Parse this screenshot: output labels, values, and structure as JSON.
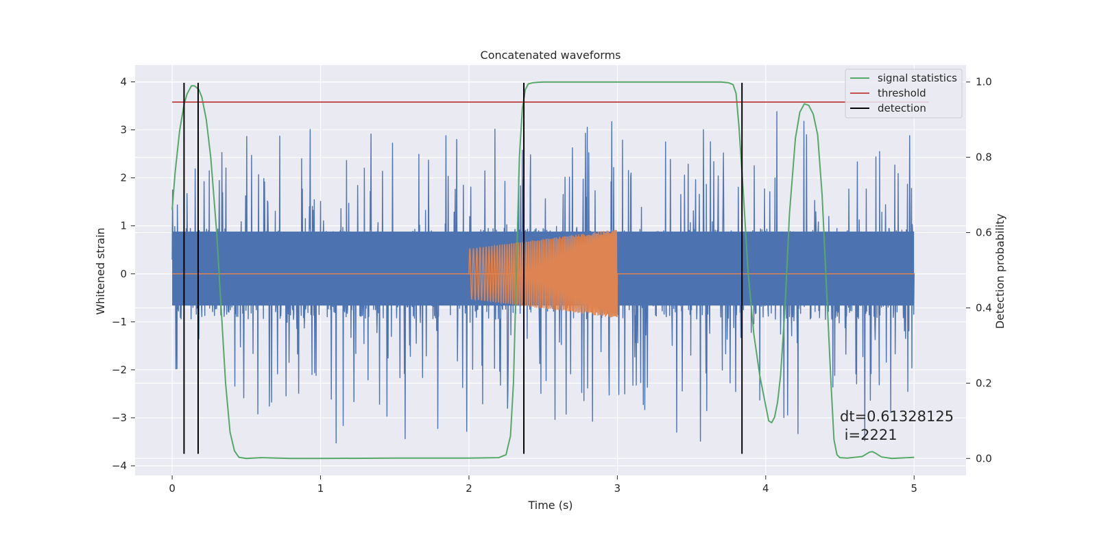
{
  "chart_data": {
    "type": "line",
    "title": "Concatenated waveforms",
    "xlabel": "Time (s)",
    "ylabel_left": "Whitened strain",
    "ylabel_right": "Detection probability",
    "xlim": [
      -0.25,
      5.35
    ],
    "ylim_left": [
      -4.2,
      4.35
    ],
    "ylim_right": [
      -0.045,
      1.045
    ],
    "xticks": [
      0,
      1,
      2,
      3,
      4,
      5
    ],
    "xtick_labels": [
      "0",
      "1",
      "2",
      "3",
      "4",
      "5"
    ],
    "yticks_left": [
      -4,
      -3,
      -2,
      -1,
      0,
      1,
      2,
      3,
      4
    ],
    "ytick_labels_left": [
      "−4",
      "−3",
      "−2",
      "−1",
      "0",
      "1",
      "2",
      "3",
      "4"
    ],
    "yticks_right": [
      0.0,
      0.2,
      0.4,
      0.6,
      0.8,
      1.0
    ],
    "ytick_labels_right": [
      "0.0",
      "0.2",
      "0.4",
      "0.6",
      "0.8",
      "1.0"
    ],
    "grid": true,
    "noise": {
      "name": "whitened strain",
      "color": "#4c72b0",
      "x_range": [
        0,
        5
      ],
      "band_min": -1.0,
      "band_max": 1.0,
      "peak_max": 3.65,
      "peak_min": -3.7
    },
    "injection": {
      "name": "injected waveform",
      "color": "#dd8452",
      "x_start": 2.0,
      "x_end": 3.0,
      "amplitude_start": 0.52,
      "amplitude_end": 0.93,
      "baseline": 0.0
    },
    "series": [
      {
        "name": "signal statistics",
        "color": "#55a868",
        "axis": "right",
        "x": [
          0.0,
          0.02,
          0.05,
          0.08,
          0.1,
          0.13,
          0.15,
          0.18,
          0.2,
          0.23,
          0.26,
          0.3,
          0.33,
          0.36,
          0.39,
          0.42,
          0.45,
          0.5,
          0.6,
          0.8,
          1.0,
          1.5,
          2.0,
          2.2,
          2.25,
          2.28,
          2.3,
          2.32,
          2.34,
          2.36,
          2.38,
          2.4,
          2.43,
          2.46,
          2.5,
          3.0,
          3.5,
          3.7,
          3.75,
          3.78,
          3.8,
          3.82,
          3.85,
          3.88,
          3.92,
          3.96,
          4.0,
          4.02,
          4.04,
          4.06,
          4.08,
          4.1,
          4.13,
          4.16,
          4.2,
          4.23,
          4.26,
          4.29,
          4.32,
          4.35,
          4.38,
          4.41,
          4.44,
          4.46,
          4.48,
          4.5,
          4.55,
          4.65,
          4.7,
          4.72,
          4.74,
          4.78,
          4.85,
          5.0
        ],
        "y": [
          0.66,
          0.76,
          0.87,
          0.94,
          0.968,
          0.99,
          0.99,
          0.98,
          0.96,
          0.9,
          0.8,
          0.6,
          0.4,
          0.2,
          0.07,
          0.02,
          0.003,
          0.0,
          0.002,
          0.0,
          0.0,
          0.001,
          0.001,
          0.002,
          0.01,
          0.06,
          0.2,
          0.5,
          0.8,
          0.93,
          0.98,
          0.995,
          0.998,
          0.999,
          1.0,
          1.0,
          1.0,
          1.0,
          0.998,
          0.993,
          0.97,
          0.88,
          0.7,
          0.5,
          0.33,
          0.22,
          0.14,
          0.1,
          0.095,
          0.11,
          0.15,
          0.22,
          0.4,
          0.65,
          0.85,
          0.92,
          0.942,
          0.938,
          0.915,
          0.86,
          0.7,
          0.45,
          0.2,
          0.05,
          0.01,
          0.002,
          0.001,
          0.005,
          0.017,
          0.018,
          0.014,
          0.004,
          0.0,
          0.003
        ]
      },
      {
        "name": "threshold",
        "color": "#c44e52",
        "axis": "left",
        "x": [
          0,
          5.1
        ],
        "y": [
          3.58,
          3.58
        ]
      }
    ],
    "detections": {
      "name": "detection",
      "color": "#000000",
      "x": [
        0.08,
        0.175,
        2.37,
        3.84
      ],
      "y_range": [
        -3.75,
        3.98
      ]
    },
    "legend": {
      "position": "top-right",
      "entries": [
        {
          "label": "signal statistics",
          "color": "#55a868"
        },
        {
          "label": "threshold",
          "color": "#c44e52"
        },
        {
          "label": "detection",
          "color": "#000000"
        }
      ]
    },
    "annotation": {
      "line1": "dt=0.61328125",
      "line2": " i=2221"
    }
  },
  "style": {
    "plot_background": "#eaeaf2",
    "grid_color": "#ffffff",
    "text_color": "#262626"
  }
}
